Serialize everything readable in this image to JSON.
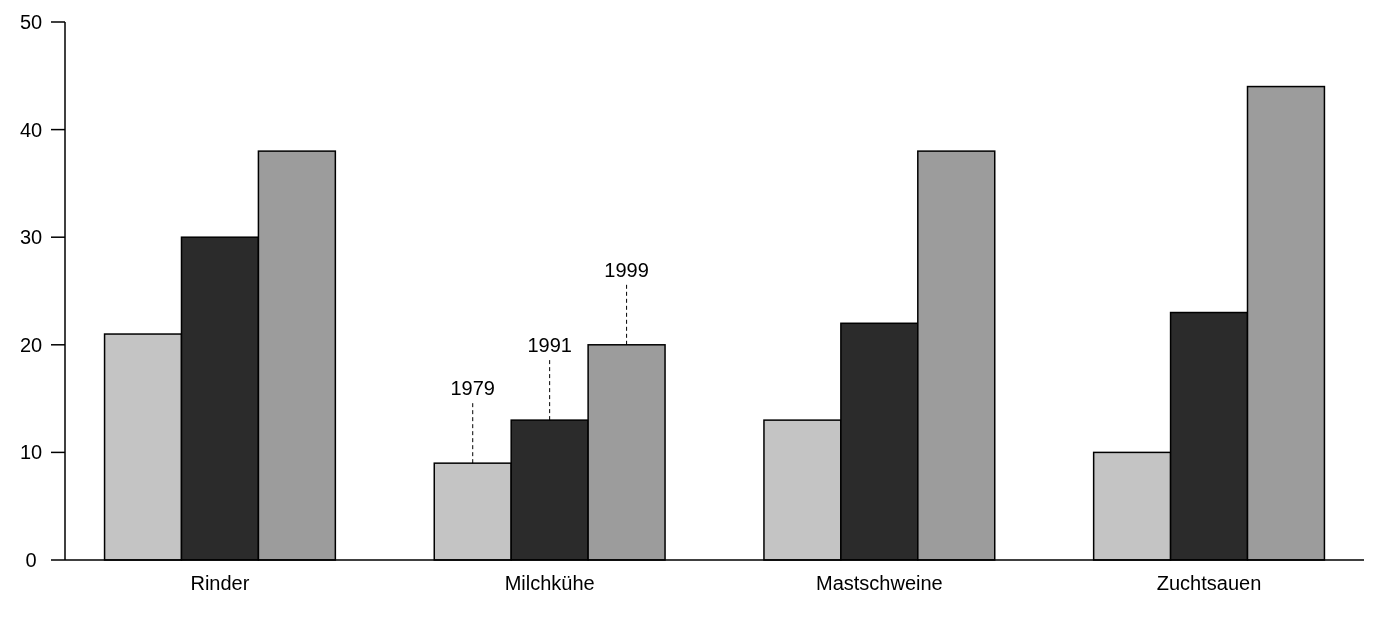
{
  "chart_data": {
    "type": "bar",
    "categories": [
      "Rinder",
      "Milchkühe",
      "Mastschweine",
      "Zuchtsauen"
    ],
    "series": [
      {
        "name": "1979",
        "color": "#c4c4c4",
        "values": [
          21,
          9,
          13,
          10
        ]
      },
      {
        "name": "1991",
        "color": "#2b2b2b",
        "values": [
          30,
          13,
          22,
          23
        ]
      },
      {
        "name": "1999",
        "color": "#9c9c9c",
        "values": [
          38,
          20,
          38,
          44
        ]
      }
    ],
    "ylim": [
      0,
      50
    ],
    "yticks": [
      0,
      10,
      20,
      30,
      40,
      50
    ],
    "grid": false
  }
}
